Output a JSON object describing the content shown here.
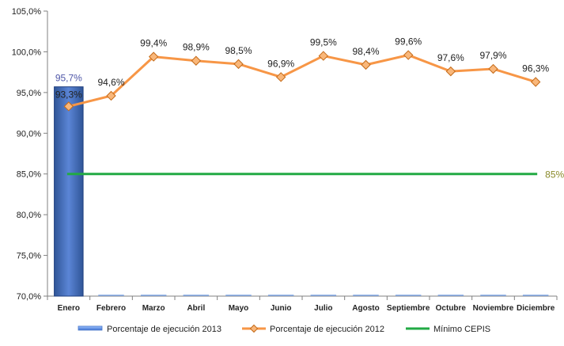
{
  "chart_data": {
    "type": "bar",
    "categories": [
      "Enero",
      "Febrero",
      "Marzo",
      "Abril",
      "Mayo",
      "Junio",
      "Julio",
      "Agosto",
      "Septiembre",
      "Octubre",
      "Noviembre",
      "Diciembre"
    ],
    "ylim": [
      70,
      105
    ],
    "yticks": [
      70,
      75,
      80,
      85,
      90,
      95,
      100,
      105
    ],
    "ytick_labels": [
      "70,0%",
      "75,0%",
      "80,0%",
      "85,0%",
      "90,0%",
      "95,0%",
      "100,0%",
      "105,0%"
    ],
    "grid": false,
    "legend_position": "bottom",
    "series": [
      {
        "name": "Porcentaje de ejecución 2013",
        "type": "bar",
        "color": "#4a6fbf",
        "values": [
          95.7,
          null,
          null,
          null,
          null,
          null,
          null,
          null,
          null,
          null,
          null,
          null
        ],
        "data_labels": [
          "95,7%",
          "",
          "",
          "",
          "",
          "",
          "",
          "",
          "",
          "",
          "",
          ""
        ],
        "label_color": "#4f57a8"
      },
      {
        "name": "Porcentaje de ejecución 2012",
        "type": "line",
        "color": "#f79646",
        "marker": "diamond",
        "values": [
          93.3,
          94.6,
          99.4,
          98.9,
          98.5,
          96.9,
          99.5,
          98.4,
          99.6,
          97.6,
          97.9,
          96.3
        ],
        "data_labels": [
          "93,3%",
          "94,6%",
          "99,4%",
          "98,9%",
          "98,5%",
          "96,9%",
          "99,5%",
          "98,4%",
          "99,6%",
          "97,6%",
          "97,9%",
          "96,3%"
        ],
        "label_color": "#222222"
      },
      {
        "name": "Mínimo CEPIS",
        "type": "line",
        "color": "#22aa44",
        "values": [
          85,
          85,
          85,
          85,
          85,
          85,
          85,
          85,
          85,
          85,
          85,
          85
        ],
        "end_label": "85%",
        "label_color": "#8a8a2a"
      }
    ]
  }
}
